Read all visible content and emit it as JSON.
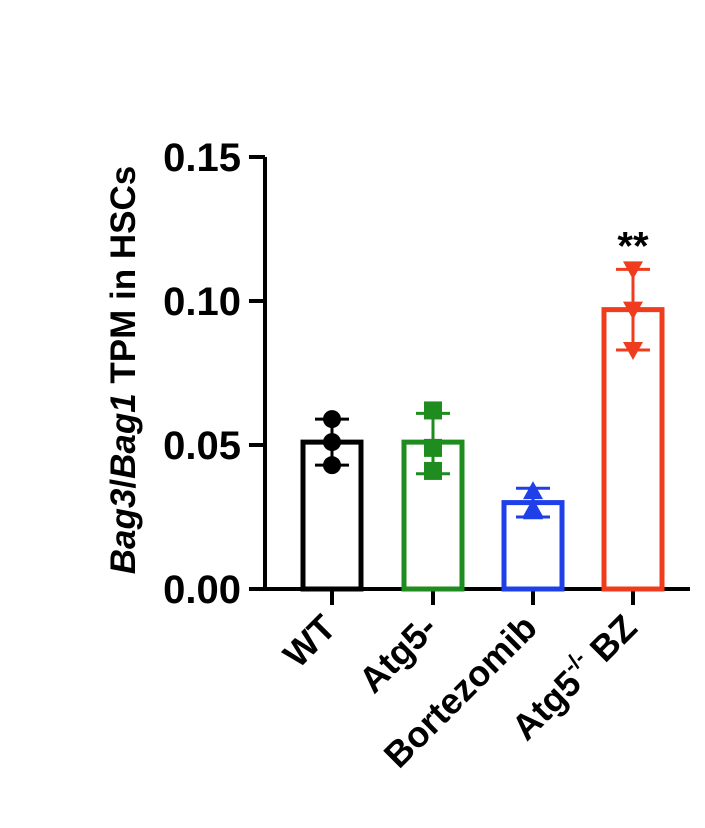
{
  "chart_data": {
    "type": "bar",
    "ylabel": {
      "parts": [
        {
          "text": "Bag3",
          "italic": true
        },
        {
          "text": "/",
          "italic": false
        },
        {
          "text": "Bag1",
          "italic": true
        },
        {
          "text": " TPM in HSCs",
          "italic": false
        }
      ]
    },
    "ylim": [
      0,
      0.15
    ],
    "yticks": [
      "0.00",
      "0.05",
      "0.10",
      "0.15"
    ],
    "categories": [
      {
        "label": "WT"
      },
      {
        "label": "Atg5-"
      },
      {
        "label": "Bortezomib"
      },
      {
        "label": "Atg5",
        "sup": "-/-",
        "suffix": " BZ"
      }
    ],
    "series": [
      {
        "name": "WT",
        "color": "#000000",
        "marker": "circle",
        "mean": 0.051,
        "err": [
          0.043,
          0.059
        ],
        "points": [
          0.059,
          0.051,
          0.043
        ]
      },
      {
        "name": "Atg5-",
        "color": "#1e8c1e",
        "marker": "square",
        "mean": 0.051,
        "err": [
          0.04,
          0.061
        ],
        "points": [
          0.062,
          0.049,
          0.041
        ]
      },
      {
        "name": "Bortezomib",
        "color": "#1f3fe8",
        "marker": "triangle-up",
        "mean": 0.03,
        "err": [
          0.025,
          0.035
        ],
        "points": [
          0.034,
          0.028,
          0.027
        ]
      },
      {
        "name": "Atg5-/- BZ",
        "color": "#f03c1e",
        "marker": "triangle-down",
        "mean": 0.097,
        "err": [
          0.083,
          0.111
        ],
        "points": [
          0.111,
          0.097,
          0.083
        ]
      }
    ],
    "annotations": [
      {
        "category_index": 3,
        "text": "**"
      }
    ]
  }
}
